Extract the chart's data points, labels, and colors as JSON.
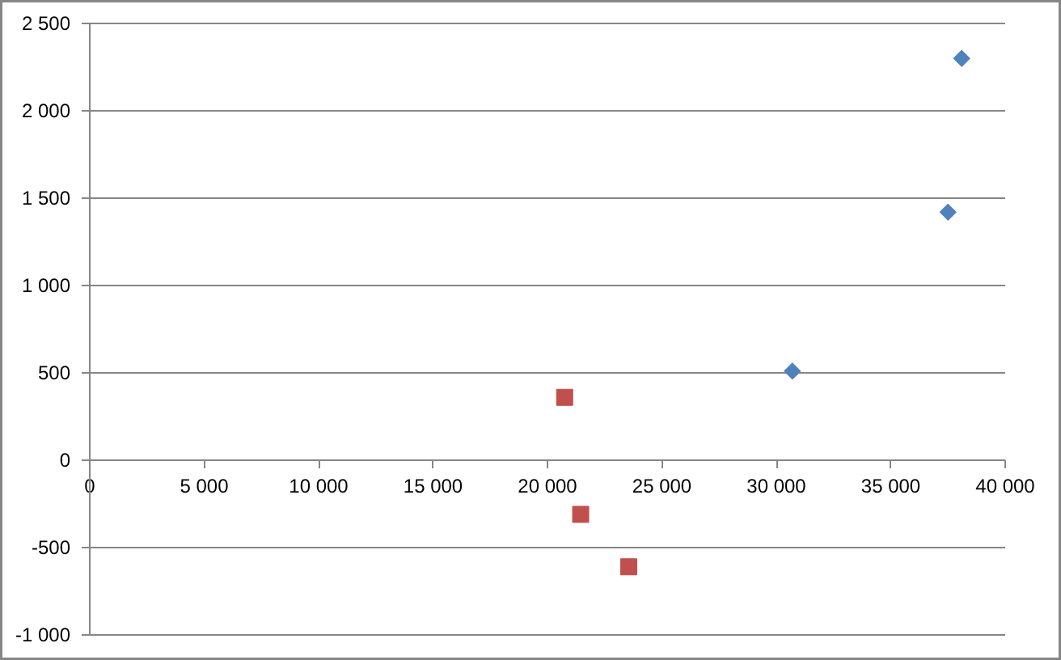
{
  "chart_data": {
    "type": "scatter",
    "series": [
      {
        "color": "#4f81bd",
        "marker": "diamond",
        "x": [
          30700,
          37500,
          38100
        ],
        "values": [
          510,
          1420,
          2300
        ]
      },
      {
        "color": "#c0504d",
        "marker": "square",
        "x": [
          20750,
          21450,
          23550
        ],
        "values": [
          360,
          -310,
          -610
        ]
      }
    ],
    "xlim": [
      0,
      40000
    ],
    "xticks": [
      0,
      {
        "value": 5000,
        "label": "5 000"
      },
      {
        "value": 10000,
        "label": "10 000"
      },
      {
        "value": 15000,
        "label": "15 000"
      },
      {
        "value": 20000,
        "label": "20 000"
      },
      {
        "value": 25000,
        "label": "25 000"
      },
      {
        "value": 30000,
        "label": "30 000"
      },
      {
        "value": 35000,
        "label": "35 000"
      },
      {
        "value": 40000,
        "label": "40 000"
      }
    ],
    "ylim": [
      -1000,
      2500
    ],
    "yticks": [
      {
        "value": -1000,
        "label": "-1 000"
      },
      -500,
      0,
      500,
      {
        "value": 1000,
        "label": "1 000"
      },
      {
        "value": 1500,
        "label": "1 500"
      },
      {
        "value": 2000,
        "label": "2 000"
      },
      {
        "value": 2500,
        "label": "2 500"
      }
    ],
    "grid": "y"
  }
}
